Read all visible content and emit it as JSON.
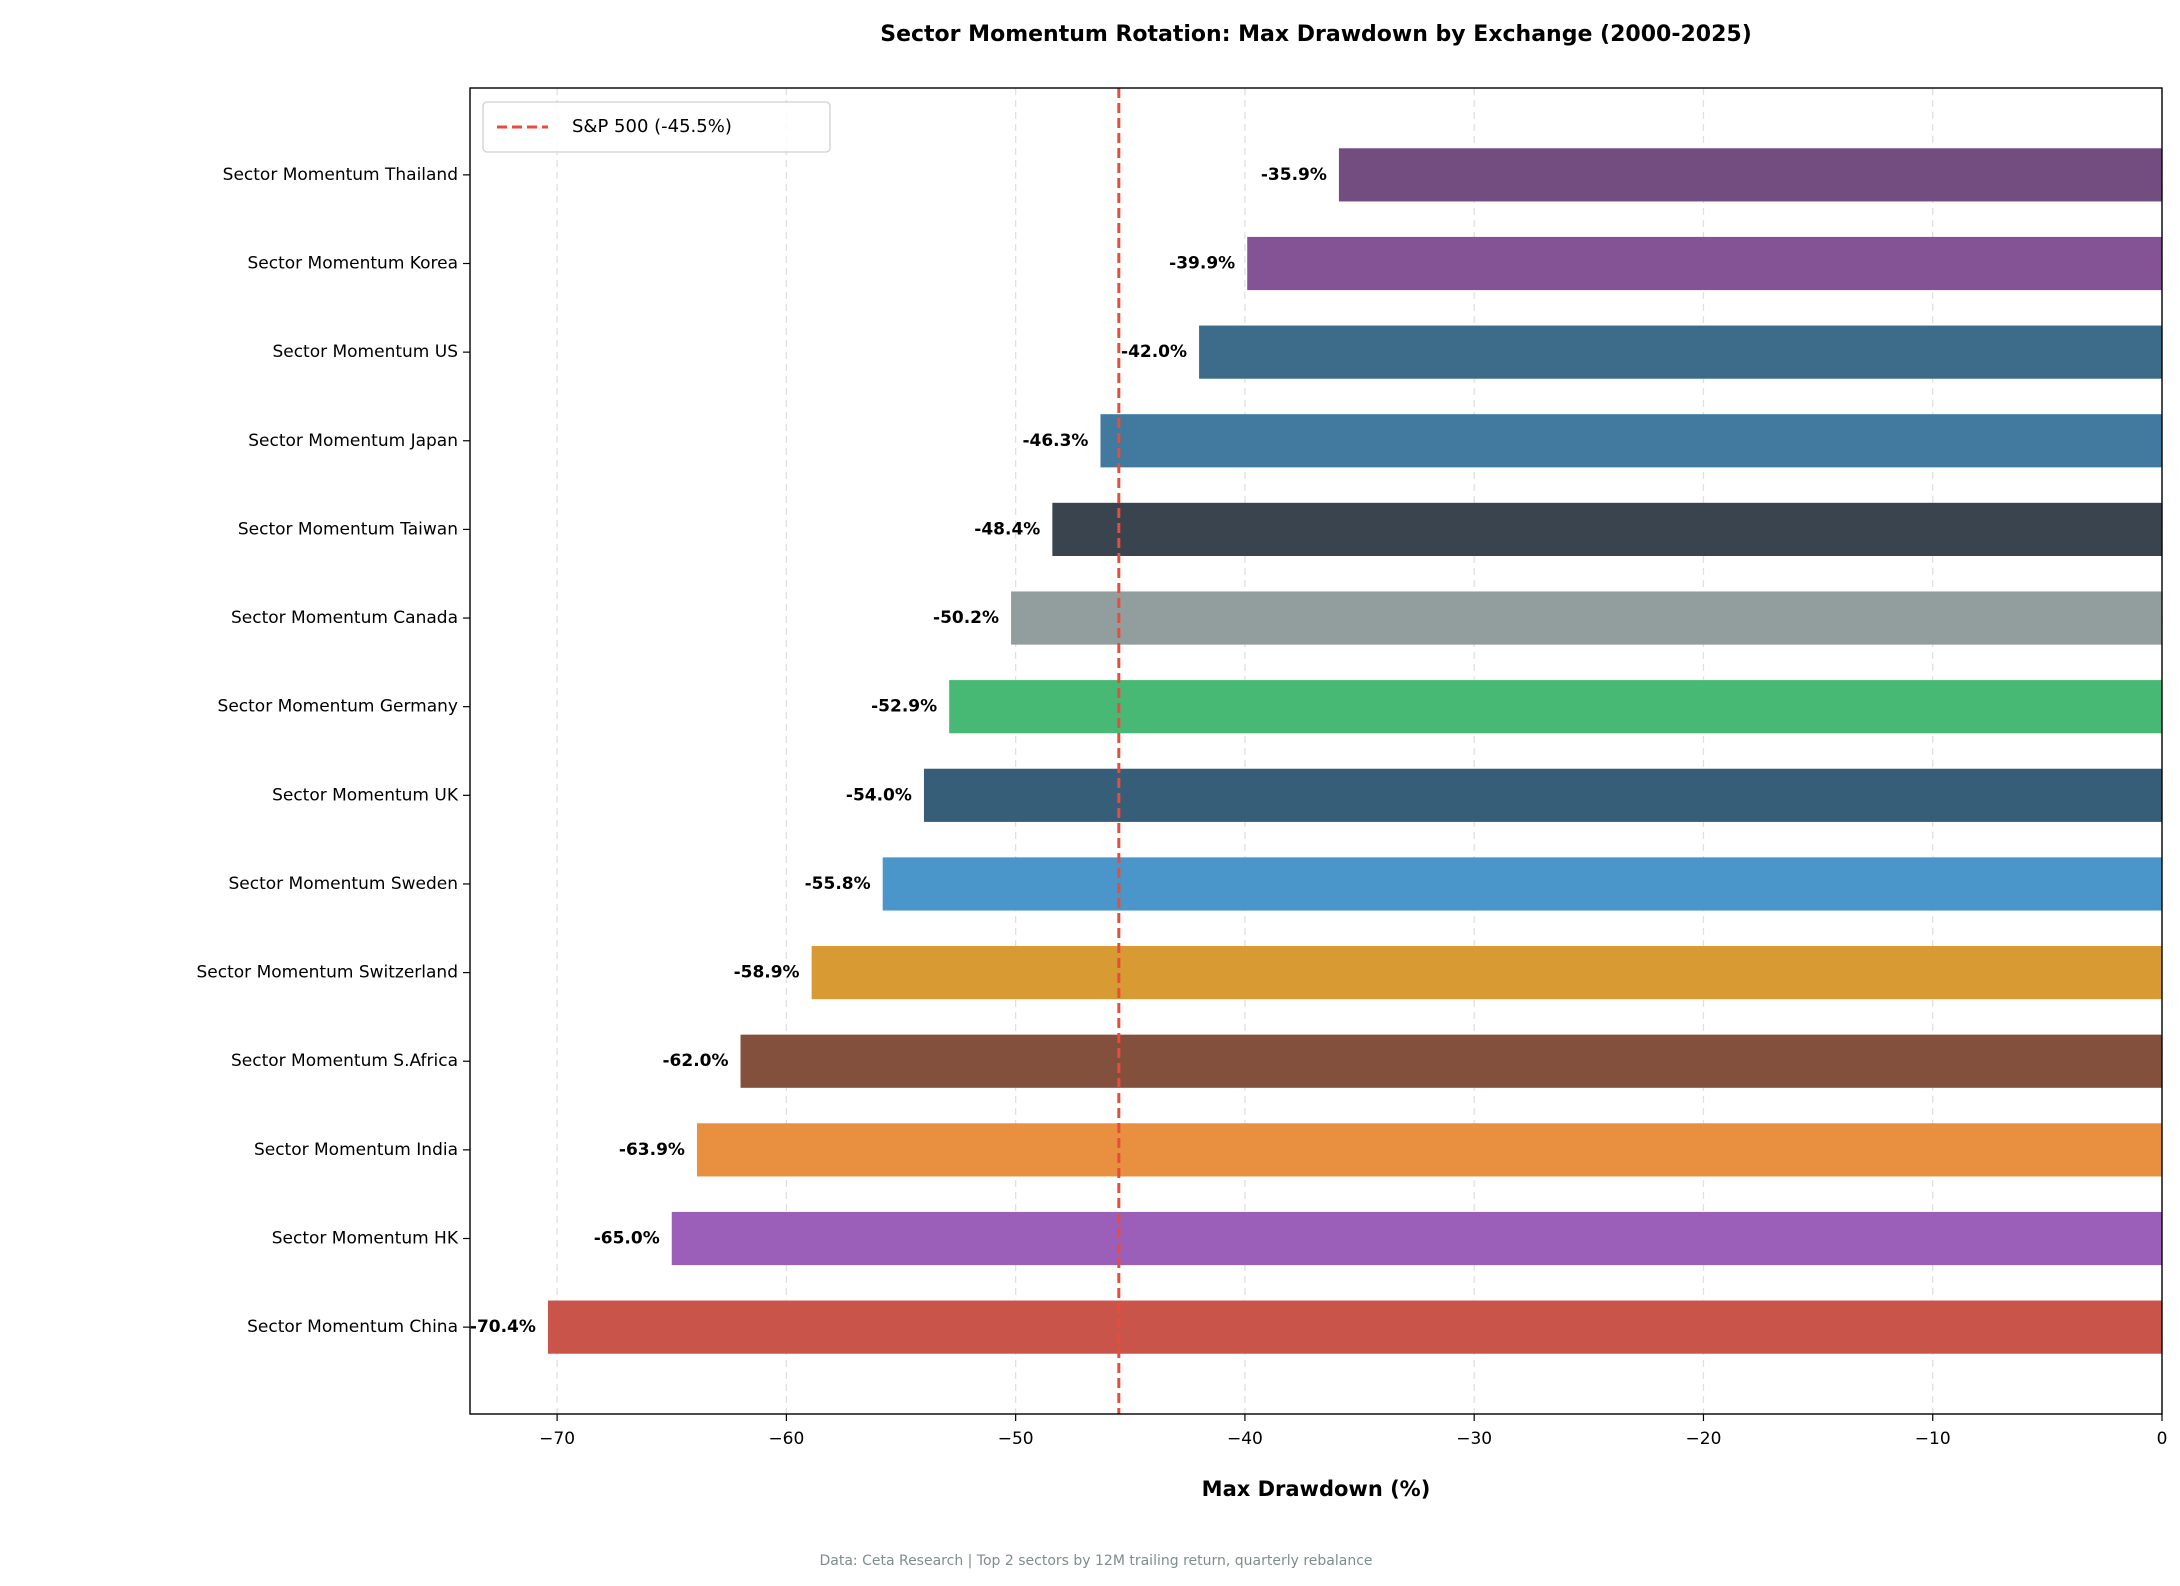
{
  "chart_data": {
    "type": "bar",
    "orientation": "horizontal",
    "title": "Sector Momentum Rotation: Max Drawdown by Exchange (2000-2025)",
    "x_label": "Max Drawdown (%)",
    "footnote": "Data: Ceta Research | Top 2 sectors by 12M trailing return, quarterly rebalance",
    "categories": [
      "Sector Momentum Thailand",
      "Sector Momentum Korea",
      "Sector Momentum US",
      "Sector Momentum Japan",
      "Sector Momentum Taiwan",
      "Sector Momentum Canada",
      "Sector Momentum Germany",
      "Sector Momentum UK",
      "Sector Momentum Sweden",
      "Sector Momentum Switzerland",
      "Sector Momentum S.Africa",
      "Sector Momentum India",
      "Sector Momentum HK",
      "Sector Momentum China"
    ],
    "values": [
      -35.9,
      -39.9,
      -42.0,
      -46.3,
      -48.4,
      -50.2,
      -52.9,
      -54.0,
      -55.8,
      -58.9,
      -62.0,
      -63.9,
      -65.0,
      -70.4
    ],
    "value_labels": [
      "-35.9%",
      "-39.9%",
      "-42.0%",
      "-46.3%",
      "-48.4%",
      "-50.2%",
      "-52.9%",
      "-54.0%",
      "-55.8%",
      "-58.9%",
      "-62.0%",
      "-63.9%",
      "-65.0%",
      "-70.4%"
    ],
    "colors": [
      "#734c80",
      "#845396",
      "#3d6b8a",
      "#41799f",
      "#3a444e",
      "#929e9d",
      "#48b975",
      "#365e78",
      "#4a95c9",
      "#d89a32",
      "#84503e",
      "#e88f40",
      "#9b5fb9",
      "#c9544a"
    ],
    "reference_line": {
      "value": -45.5,
      "label": "S&P 500 (-45.5%)",
      "color": "#e74c3c"
    },
    "xlim": [
      -73.8,
      0
    ],
    "xticks": [
      {
        "value": -70,
        "label": "−70"
      },
      {
        "value": -60,
        "label": "−60"
      },
      {
        "value": -50,
        "label": "−50"
      },
      {
        "value": -40,
        "label": "−40"
      },
      {
        "value": -30,
        "label": "−30"
      },
      {
        "value": -20,
        "label": "−20"
      },
      {
        "value": -10,
        "label": "−10"
      },
      0
    ],
    "grid": true,
    "legend_position": "upper left"
  }
}
